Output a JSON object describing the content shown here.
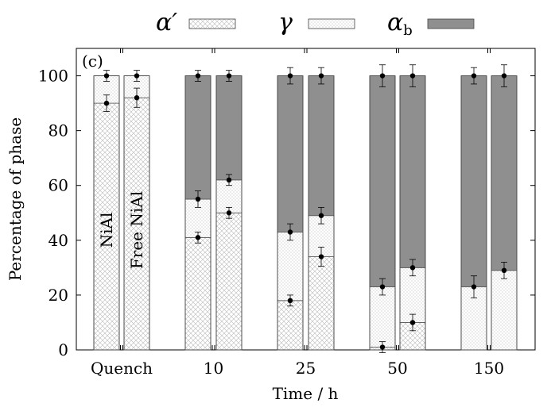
{
  "chart_data": {
    "type": "bar",
    "stacked": true,
    "panel_label": "(c)",
    "xlabel": "Time / h",
    "ylabel": "Percentage of phase",
    "ylim": [
      0,
      110
    ],
    "yticks": [
      0,
      20,
      40,
      60,
      80,
      100
    ],
    "grid": false,
    "legend_position": "top",
    "legend": [
      {
        "key": "alpha_prime",
        "symbol": "α′",
        "sub": "",
        "pattern": "crosshatch",
        "color": "#ffffff"
      },
      {
        "key": "gamma",
        "symbol": "γ",
        "sub": "",
        "pattern": "dots",
        "color": "#ffffff"
      },
      {
        "key": "alpha_b",
        "symbol": "α",
        "sub": "b",
        "pattern": "solid",
        "color": "#8f8f8f"
      }
    ],
    "groups": [
      "Quench",
      "10",
      "25",
      "50",
      "150"
    ],
    "bars": [
      {
        "group": "Quench",
        "bar_label": "NiAl",
        "alpha_prime": 90,
        "gamma": 10,
        "alpha_b": 0,
        "points": [
          {
            "y": 90,
            "err": 3
          },
          {
            "y": 100,
            "err": 2
          }
        ]
      },
      {
        "group": "Quench",
        "bar_label": "Free NiAl",
        "alpha_prime": 92,
        "gamma": 8,
        "alpha_b": 0,
        "points": [
          {
            "y": 92,
            "err": 3.5
          },
          {
            "y": 100,
            "err": 2
          }
        ]
      },
      {
        "group": "10",
        "bar_label": "",
        "alpha_prime": 41,
        "gamma": 14,
        "alpha_b": 45,
        "points": [
          {
            "y": 41,
            "err": 2
          },
          {
            "y": 55,
            "err": 3
          },
          {
            "y": 100,
            "err": 2
          }
        ]
      },
      {
        "group": "10",
        "bar_label": "",
        "alpha_prime": 50,
        "gamma": 12,
        "alpha_b": 38,
        "points": [
          {
            "y": 50,
            "err": 2
          },
          {
            "y": 62,
            "err": 2
          },
          {
            "y": 100,
            "err": 2
          }
        ]
      },
      {
        "group": "25",
        "bar_label": "",
        "alpha_prime": 18,
        "gamma": 25,
        "alpha_b": 57,
        "points": [
          {
            "y": 18,
            "err": 2
          },
          {
            "y": 43,
            "err": 3
          },
          {
            "y": 100,
            "err": 3
          }
        ]
      },
      {
        "group": "25",
        "bar_label": "",
        "alpha_prime": 34,
        "gamma": 15,
        "alpha_b": 51,
        "points": [
          {
            "y": 34,
            "err": 3.5
          },
          {
            "y": 49,
            "err": 3
          },
          {
            "y": 100,
            "err": 3
          }
        ]
      },
      {
        "group": "50",
        "bar_label": "",
        "alpha_prime": 1,
        "gamma": 22,
        "alpha_b": 77,
        "points": [
          {
            "y": 1,
            "err": 2
          },
          {
            "y": 23,
            "err": 3
          },
          {
            "y": 100,
            "err": 4
          }
        ]
      },
      {
        "group": "50",
        "bar_label": "",
        "alpha_prime": 10,
        "gamma": 20,
        "alpha_b": 70,
        "points": [
          {
            "y": 10,
            "err": 3
          },
          {
            "y": 30,
            "err": 3
          },
          {
            "y": 100,
            "err": 4
          }
        ]
      },
      {
        "group": "150",
        "bar_label": "",
        "alpha_prime": 0,
        "gamma": 23,
        "alpha_b": 77,
        "points": [
          {
            "y": 23,
            "err": 4
          },
          {
            "y": 100,
            "err": 3
          }
        ]
      },
      {
        "group": "150",
        "bar_label": "",
        "alpha_prime": 0,
        "gamma": 29,
        "alpha_b": 71,
        "points": [
          {
            "y": 29,
            "err": 3
          },
          {
            "y": 100,
            "err": 4
          }
        ]
      }
    ]
  }
}
